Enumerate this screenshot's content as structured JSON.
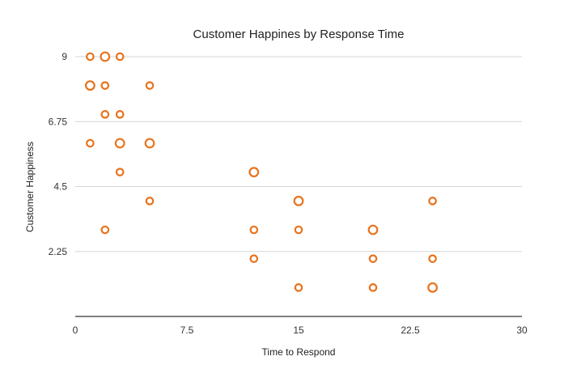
{
  "chart_data": {
    "type": "scatter",
    "title": "Customer Happines by Response Time",
    "xlabel": "Time to Respond",
    "ylabel": "Customer Happiness",
    "xlim": [
      0,
      30
    ],
    "ylim": [
      0,
      9
    ],
    "x_ticks": [
      0,
      7.5,
      15,
      22.5,
      30
    ],
    "x_tick_labels": [
      "0",
      "7.5",
      "15",
      "22.5",
      "30"
    ],
    "y_ticks": [
      2.25,
      4.5,
      6.75,
      9
    ],
    "y_tick_labels": [
      "2.25",
      "4.5",
      "6.75",
      "9"
    ],
    "grid": true,
    "legend": false,
    "marker_color": "#e8731c",
    "points": [
      {
        "x": 1,
        "y": 9,
        "size": "small"
      },
      {
        "x": 2,
        "y": 9,
        "size": "large"
      },
      {
        "x": 3,
        "y": 9,
        "size": "small"
      },
      {
        "x": 1,
        "y": 8,
        "size": "large"
      },
      {
        "x": 2,
        "y": 8,
        "size": "small"
      },
      {
        "x": 5,
        "y": 8,
        "size": "small"
      },
      {
        "x": 2,
        "y": 7,
        "size": "small"
      },
      {
        "x": 3,
        "y": 7,
        "size": "small"
      },
      {
        "x": 1,
        "y": 6,
        "size": "small"
      },
      {
        "x": 3,
        "y": 6,
        "size": "large"
      },
      {
        "x": 5,
        "y": 6,
        "size": "large"
      },
      {
        "x": 3,
        "y": 5,
        "size": "small"
      },
      {
        "x": 12,
        "y": 5,
        "size": "large"
      },
      {
        "x": 5,
        "y": 4,
        "size": "small"
      },
      {
        "x": 15,
        "y": 4,
        "size": "large"
      },
      {
        "x": 24,
        "y": 4,
        "size": "small"
      },
      {
        "x": 2,
        "y": 3,
        "size": "small"
      },
      {
        "x": 12,
        "y": 3,
        "size": "small"
      },
      {
        "x": 15,
        "y": 3,
        "size": "small"
      },
      {
        "x": 20,
        "y": 3,
        "size": "large"
      },
      {
        "x": 12,
        "y": 2,
        "size": "small"
      },
      {
        "x": 20,
        "y": 2,
        "size": "small"
      },
      {
        "x": 24,
        "y": 2,
        "size": "small"
      },
      {
        "x": 15,
        "y": 1,
        "size": "small"
      },
      {
        "x": 20,
        "y": 1,
        "size": "small"
      },
      {
        "x": 24,
        "y": 1,
        "size": "large"
      }
    ]
  }
}
